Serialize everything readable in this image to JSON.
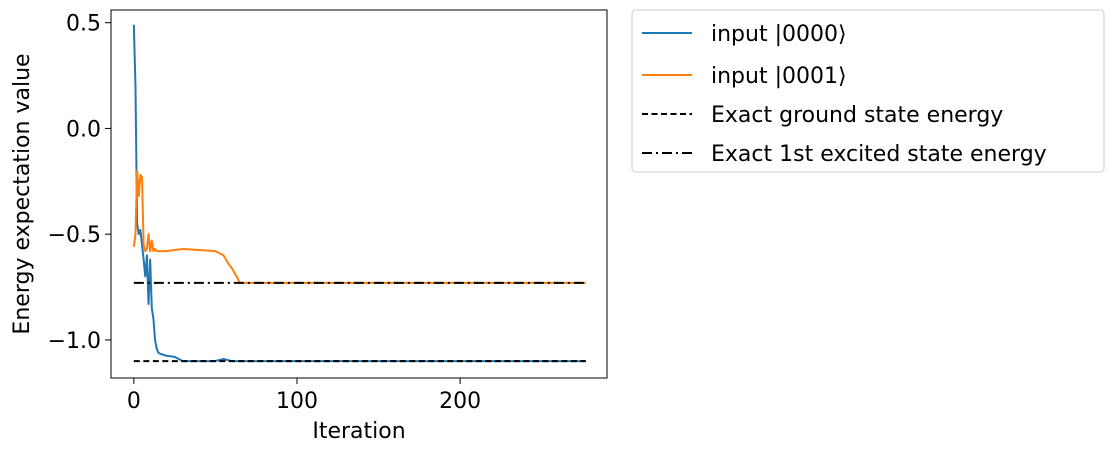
{
  "chart_data": {
    "type": "line",
    "xlabel": "Iteration",
    "ylabel": "Energy expectation value",
    "xlim": [
      -14,
      290
    ],
    "ylim": [
      -1.18,
      0.56
    ],
    "xticks": [
      0,
      100,
      200
    ],
    "xtick_labels": [
      "0",
      "100",
      "200"
    ],
    "yticks": [
      0.5,
      0.0,
      -0.5,
      -1.0
    ],
    "ytick_labels": [
      "0.5",
      "0.0",
      "−0.5",
      "−1.0"
    ],
    "grid": false,
    "legend_placement": "outside-top-right",
    "series": [
      {
        "name": "input |0000⟩",
        "color": "#1f77b4",
        "style": "solid",
        "x": [
          0,
          1,
          2,
          3,
          4,
          5,
          6,
          7,
          8,
          9,
          10,
          11,
          12,
          13,
          14,
          15,
          16,
          18,
          20,
          25,
          30,
          40,
          50,
          55,
          60,
          65,
          70,
          100,
          150,
          200,
          250,
          277
        ],
        "y": [
          0.49,
          0.2,
          -0.45,
          -0.5,
          -0.48,
          -0.55,
          -0.62,
          -0.7,
          -0.6,
          -0.83,
          -0.62,
          -0.85,
          -0.9,
          -1.0,
          -1.04,
          -1.06,
          -1.065,
          -1.07,
          -1.075,
          -1.08,
          -1.1,
          -1.1,
          -1.1,
          -1.09,
          -1.1,
          -1.1,
          -1.1,
          -1.1,
          -1.1,
          -1.1,
          -1.1,
          -1.1
        ]
      },
      {
        "name": "input |0001⟩",
        "color": "#ff7f0e",
        "style": "solid",
        "x": [
          0,
          1,
          2,
          3,
          4,
          5,
          6,
          7,
          8,
          9,
          10,
          11,
          12,
          13,
          14,
          16,
          18,
          20,
          25,
          30,
          40,
          50,
          55,
          58,
          60,
          63,
          65,
          70,
          100,
          150,
          200,
          250,
          277
        ],
        "y": [
          -0.56,
          -0.5,
          -0.2,
          -0.32,
          -0.22,
          -0.23,
          -0.55,
          -0.58,
          -0.57,
          -0.5,
          -0.58,
          -0.53,
          -0.58,
          -0.57,
          -0.58,
          -0.58,
          -0.58,
          -0.58,
          -0.575,
          -0.57,
          -0.575,
          -0.58,
          -0.6,
          -0.64,
          -0.66,
          -0.7,
          -0.73,
          -0.73,
          -0.73,
          -0.73,
          -0.73,
          -0.73,
          -0.73
        ]
      },
      {
        "name": "Exact ground state energy",
        "color": "#000000",
        "style": "dashed",
        "x": [
          0,
          277
        ],
        "y": [
          -1.1,
          -1.1
        ]
      },
      {
        "name": "Exact 1st excited state energy",
        "color": "#000000",
        "style": "dashdot",
        "x": [
          0,
          277
        ],
        "y": [
          -0.73,
          -0.73
        ]
      }
    ]
  }
}
